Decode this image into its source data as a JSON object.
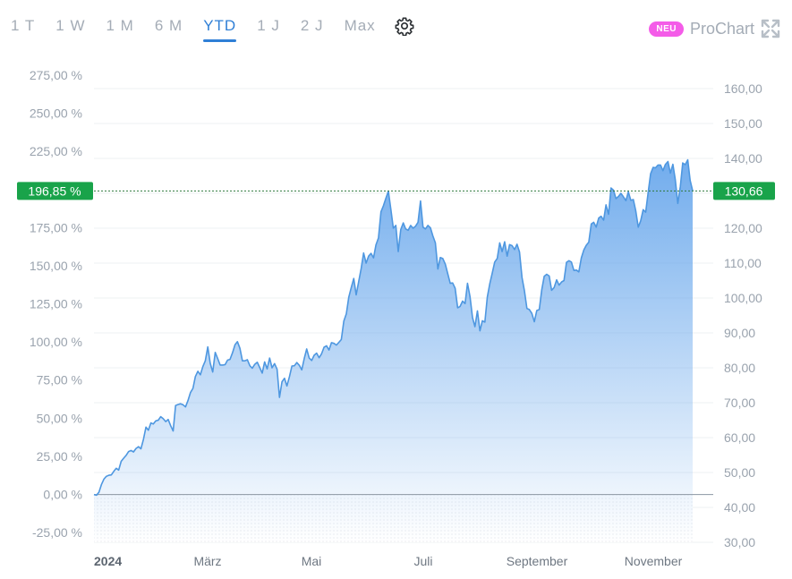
{
  "toolbar": {
    "ranges": [
      "1 T",
      "1 W",
      "1 M",
      "6 M",
      "YTD",
      "1 J",
      "2 J",
      "Max"
    ],
    "active_range": "YTD",
    "settings_icon": "gear-icon",
    "badge": "NEU",
    "prochart_label": "ProChart",
    "expand_icon": "expand-icon",
    "badge_color": "#f45ce8",
    "accent_color": "#2f7fd6"
  },
  "chart_data": {
    "type": "area",
    "x_tick_labels": [
      "2024",
      "März",
      "Mai",
      "Juli",
      "September",
      "November"
    ],
    "left_axis_ticks": [
      "-25,00 %",
      "0,00 %",
      "25,00 %",
      "50,00 %",
      "75,00 %",
      "100,00 %",
      "125,00 %",
      "150,00 %",
      "175,00 %",
      "200,00 %",
      "225,00 %",
      "250,00 %",
      "275,00 %"
    ],
    "right_axis_ticks": [
      "30,00",
      "40,00",
      "50,00",
      "60,00",
      "70,00",
      "80,00",
      "90,00",
      "100,00",
      "110,00",
      "120,00",
      "130,00",
      "140,00",
      "150,00",
      "160,00"
    ],
    "ylim_right": [
      30,
      160
    ],
    "current_percent": "196,85 %",
    "current_value": "130,66",
    "flag_color": "#19a34a",
    "line_color": "#4e97e0",
    "values": [
      43.7,
      43.5,
      44.3,
      46.5,
      48.1,
      48.9,
      49.2,
      49.3,
      50.3,
      51.2,
      50.7,
      53.2,
      54.1,
      54.9,
      56.0,
      56.3,
      55.9,
      56.9,
      57.4,
      56.8,
      59.5,
      63.0,
      62.1,
      64.2,
      63.9,
      64.8,
      65.0,
      66.0,
      65.4,
      64.6,
      65.2,
      63.4,
      61.9,
      69.2,
      69.5,
      69.7,
      69.4,
      68.8,
      70.6,
      72.9,
      74.1,
      77.5,
      79.0,
      78.0,
      80.3,
      82.0,
      86.0,
      81.3,
      78.8,
      84.4,
      82.7,
      80.8,
      80.8,
      80.9,
      82.2,
      82.4,
      84.3,
      86.6,
      87.5,
      85.6,
      82.0,
      82.0,
      82.3,
      80.6,
      79.9,
      81.0,
      81.6,
      80.1,
      78.5,
      81.7,
      79.7,
      82.8,
      80.0,
      81.2,
      79.6,
      71.5,
      76.0,
      77.0,
      74.8,
      77.4,
      80.5,
      80.6,
      81.5,
      80.7,
      79.4,
      82.7,
      85.4,
      82.8,
      82.1,
      83.6,
      84.2,
      82.9,
      84.0,
      85.9,
      86.3,
      85.1,
      87.2,
      87.0,
      86.5,
      87.3,
      88.1,
      93.4,
      95.5,
      100.2,
      103.0,
      105.6,
      100.9,
      104.7,
      108.5,
      112.9,
      110.0,
      112.0,
      112.8,
      111.5,
      115.2,
      117.2,
      124.7,
      126.4,
      128.6,
      130.6,
      125.5,
      120.0,
      120.8,
      113.3,
      119.6,
      121.5,
      119.8,
      119.4,
      120.8,
      120.0,
      120.6,
      121.7,
      127.8,
      120.3,
      119.8,
      120.8,
      120.1,
      117.8,
      115.8,
      108.3,
      111.6,
      111.3,
      109.7,
      107.0,
      104.2,
      104.3,
      102.8,
      97.2,
      97.6,
      99.1,
      98.4,
      104.2,
      100.4,
      94.4,
      91.8,
      96.3,
      90.6,
      93.5,
      93.1,
      100.2,
      104.1,
      107.2,
      110.3,
      111.3,
      115.8,
      113.3,
      116.1,
      112.0,
      115.3,
      115.0,
      113.9,
      115.4,
      113.2,
      105.9,
      102.1,
      97.0,
      96.7,
      95.6,
      93.2,
      96.4,
      96.7,
      102.4,
      106.2,
      106.8,
      106.3,
      102.2,
      103.0,
      105.2,
      103.7,
      104.6,
      105.0,
      110.2,
      110.7,
      110.3,
      107.9,
      108.0,
      107.5,
      111.5,
      113.8,
      115.1,
      116.0,
      121.2,
      121.7,
      120.3,
      122.9,
      123.4,
      122.3,
      126.7,
      124.0,
      131.5,
      130.9,
      128.5,
      129.1,
      130.0,
      129.0,
      127.9,
      130.4,
      128.0,
      128.2,
      125.0,
      120.3,
      122.1,
      125.3,
      124.6,
      130.1,
      135.6,
      137.4,
      137.3,
      138.1,
      138.1,
      136.5,
      138.3,
      139.1,
      135.8,
      138.3,
      133.9,
      127.1,
      131.9,
      138.7,
      138.2,
      139.6,
      133.7,
      130.7
    ]
  }
}
